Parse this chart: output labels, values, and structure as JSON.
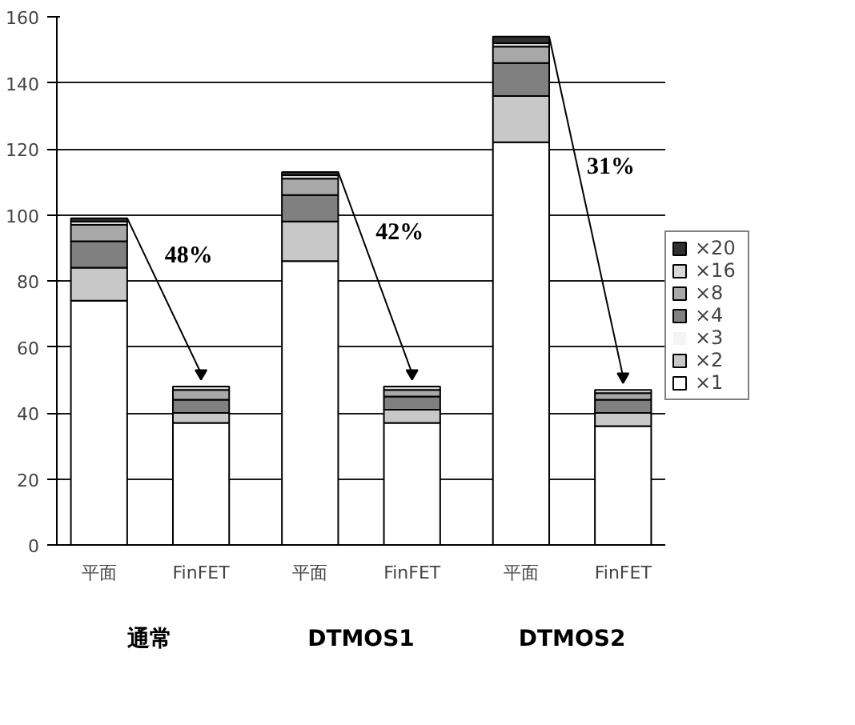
{
  "chart_data": {
    "type": "bar",
    "stacked": true,
    "categories": [
      "平面",
      "FinFET",
      "平面",
      "FinFET",
      "平面",
      "FinFET"
    ],
    "series": [
      {
        "name": "×1",
        "color": "#ffffff",
        "values": [
          74,
          37,
          86,
          37,
          122,
          36
        ]
      },
      {
        "name": "×2",
        "color": "#c8c8c8",
        "values": [
          10,
          3,
          12,
          4,
          14,
          4
        ]
      },
      {
        "name": "×3",
        "color": "#f4f4f4",
        "values": [
          0,
          0,
          0,
          0,
          0,
          0
        ]
      },
      {
        "name": "×4",
        "color": "#808080",
        "values": [
          8,
          4,
          8,
          4,
          10,
          4
        ]
      },
      {
        "name": "×8",
        "color": "#a8a8a8",
        "values": [
          5,
          3,
          5,
          2,
          5,
          2
        ]
      },
      {
        "name": "×16",
        "color": "#d8d8d8",
        "values": [
          1,
          1,
          1,
          1,
          1,
          1
        ]
      },
      {
        "name": "×20",
        "color": "#303030",
        "values": [
          1,
          0,
          1,
          0,
          2,
          0
        ]
      }
    ],
    "annotations": [
      "48%",
      "42%",
      "31%",
      "通常",
      "DTMOS1",
      "DTMOS2"
    ],
    "ylim": [
      0,
      160
    ],
    "yticks": [
      0,
      20,
      40,
      60,
      80,
      100,
      120,
      140,
      160
    ],
    "grid": "y",
    "legend": "right"
  }
}
